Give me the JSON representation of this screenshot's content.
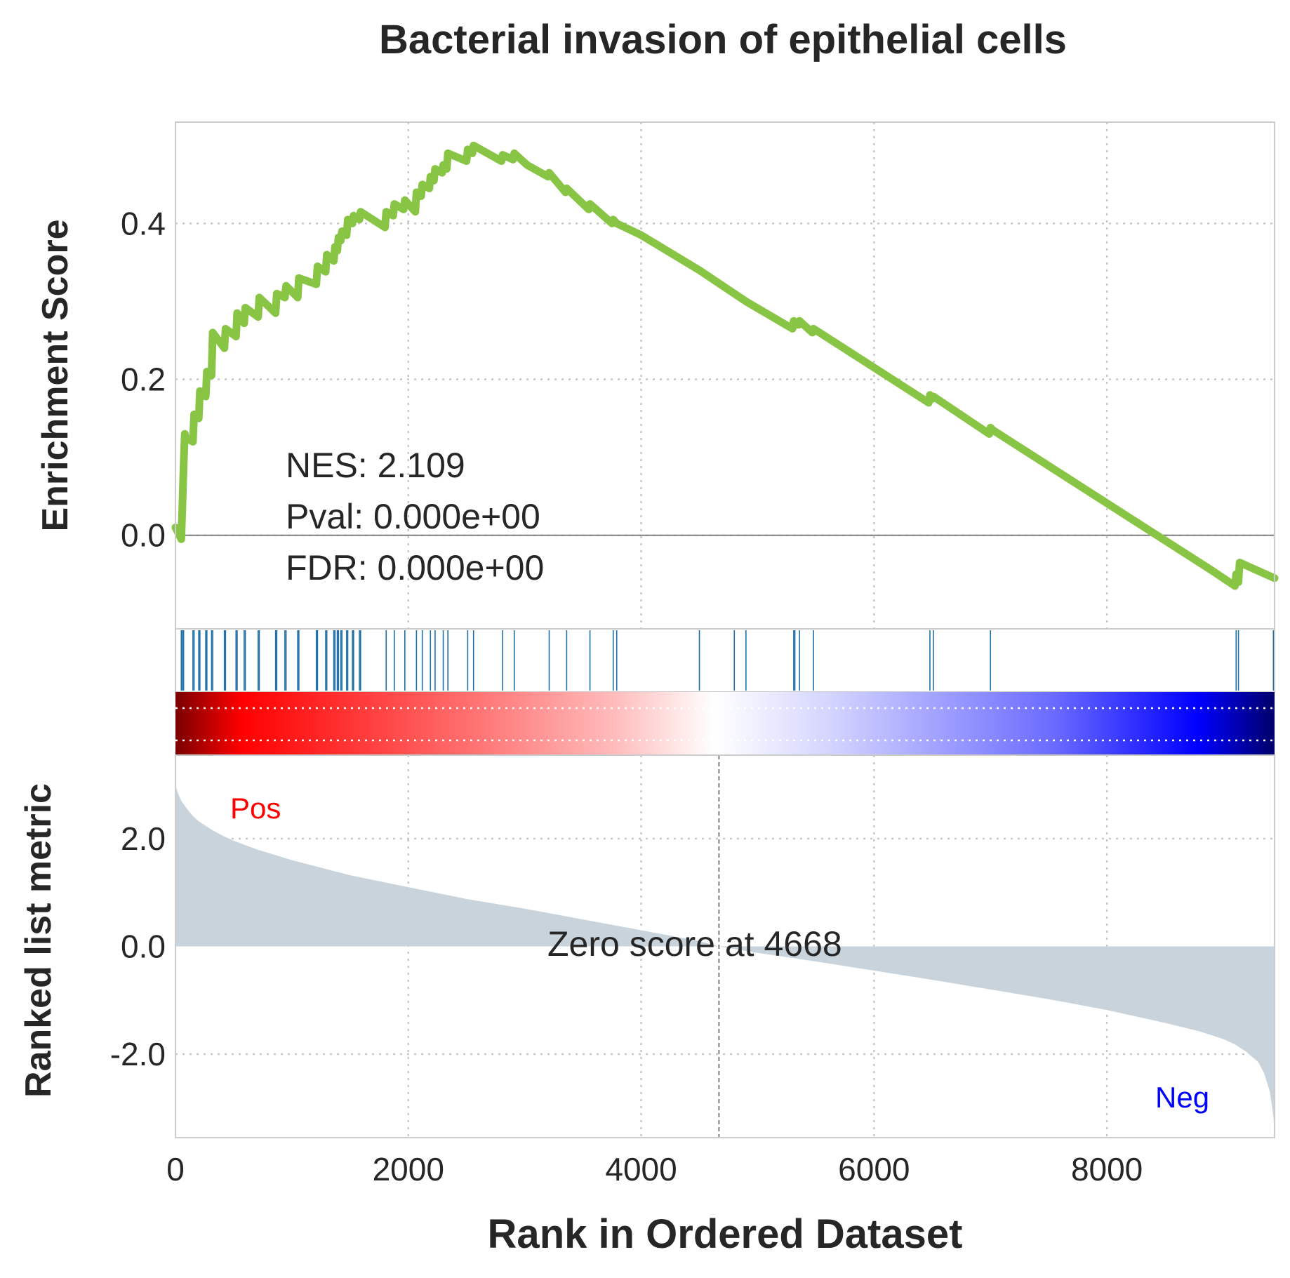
{
  "title": "Bacterial invasion of epithelial cells",
  "colors": {
    "es_line": "#88c544",
    "hits": "#1f6fa8",
    "metric_fill": "#c8d3dc",
    "pos_label": "#ff0000",
    "neg_label": "#0000ff"
  },
  "stats": {
    "nes": "NES: 2.109",
    "pval": "Pval: 0.000e+00",
    "fdr": "FDR: 0.000e+00"
  },
  "pos_label": "Pos",
  "neg_label": "Neg",
  "zero_score_label": "Zero score at 4668",
  "chart_data": [
    {
      "type": "line",
      "name": "running enrichment score",
      "ylabel": "Enrichment Score",
      "xlim": [
        0,
        9440
      ],
      "ylim": [
        -0.12,
        0.53
      ],
      "x_ticks": [
        0,
        2000,
        4000,
        6000,
        8000
      ],
      "y_ticks": [
        0.0,
        0.2,
        0.4
      ],
      "y_tick_labels": [
        "0.0",
        "0.2",
        "0.4"
      ],
      "grid": true,
      "x": [
        0,
        50,
        60,
        70,
        80,
        90,
        150,
        160,
        200,
        210,
        260,
        270,
        310,
        320,
        420,
        430,
        520,
        530,
        590,
        600,
        710,
        720,
        860,
        870,
        940,
        950,
        1050,
        1060,
        1210,
        1220,
        1290,
        1300,
        1360,
        1370,
        1390,
        1400,
        1420,
        1430,
        1470,
        1480,
        1520,
        1530,
        1580,
        1590,
        1800,
        1810,
        1870,
        1880,
        1960,
        1970,
        2060,
        2070,
        2110,
        2120,
        2180,
        2190,
        2220,
        2230,
        2290,
        2300,
        2330,
        2340,
        2500,
        2510,
        2550,
        2560,
        2800,
        2810,
        2900,
        2910,
        3020,
        3200,
        3210,
        3350,
        3360,
        3550,
        3560,
        3750,
        3760,
        3790,
        4000,
        4500,
        4900,
        5300,
        5310,
        5350,
        5360,
        5470,
        5480,
        6470,
        6480,
        6500,
        6510,
        6990,
        7000,
        7020,
        8900,
        9100,
        9110,
        9130,
        9140,
        9440
      ],
      "y": [
        0.01,
        -0.005,
        0.04,
        0.09,
        0.13,
        0.125,
        0.12,
        0.155,
        0.15,
        0.185,
        0.178,
        0.21,
        0.205,
        0.26,
        0.24,
        0.265,
        0.255,
        0.285,
        0.272,
        0.292,
        0.28,
        0.305,
        0.285,
        0.31,
        0.305,
        0.32,
        0.305,
        0.33,
        0.322,
        0.345,
        0.338,
        0.36,
        0.352,
        0.37,
        0.365,
        0.382,
        0.378,
        0.39,
        0.385,
        0.405,
        0.4,
        0.41,
        0.405,
        0.415,
        0.395,
        0.415,
        0.41,
        0.425,
        0.418,
        0.43,
        0.415,
        0.44,
        0.435,
        0.45,
        0.445,
        0.46,
        0.455,
        0.47,
        0.465,
        0.475,
        0.47,
        0.49,
        0.48,
        0.495,
        0.49,
        0.5,
        0.48,
        0.488,
        0.482,
        0.49,
        0.475,
        0.46,
        0.465,
        0.44,
        0.445,
        0.418,
        0.425,
        0.4,
        0.405,
        0.4,
        0.385,
        0.34,
        0.3,
        0.265,
        0.275,
        0.27,
        0.275,
        0.26,
        0.265,
        0.17,
        0.18,
        0.175,
        0.178,
        0.13,
        0.138,
        0.135,
        -0.045,
        -0.065,
        -0.05,
        -0.06,
        -0.035,
        -0.055
      ]
    },
    {
      "type": "event-plot",
      "name": "gene set hits",
      "x": [
        50,
        60,
        70,
        150,
        160,
        200,
        210,
        260,
        270,
        310,
        320,
        420,
        430,
        520,
        530,
        590,
        600,
        710,
        720,
        860,
        870,
        940,
        950,
        1050,
        1060,
        1210,
        1220,
        1290,
        1300,
        1360,
        1370,
        1390,
        1400,
        1420,
        1430,
        1470,
        1480,
        1520,
        1530,
        1580,
        1590,
        1810,
        1880,
        1970,
        2070,
        2120,
        2190,
        2230,
        2300,
        2340,
        2510,
        2560,
        2810,
        2910,
        3210,
        3360,
        3560,
        3760,
        3790,
        4500,
        4800,
        4900,
        5310,
        5320,
        5360,
        5480,
        6480,
        6510,
        7000,
        9110,
        9130,
        9430
      ]
    },
    {
      "type": "area",
      "name": "ranked list metric",
      "ylabel": "Ranked list metric",
      "xlabel": "Rank in Ordered Dataset",
      "xlim": [
        0,
        9440
      ],
      "ylim": [
        -3.55,
        3.55
      ],
      "x_ticks": [
        0,
        2000,
        4000,
        6000,
        8000
      ],
      "x_tick_labels": [
        "0",
        "2000",
        "4000",
        "6000",
        "8000"
      ],
      "y_ticks": [
        2.0,
        0.0,
        -2.0
      ],
      "y_tick_labels": [
        "2.0",
        "0.0",
        "-2.0"
      ],
      "zero_cross": 4668,
      "grid": true,
      "x": [
        0,
        20,
        50,
        100,
        150,
        200,
        300,
        400,
        500,
        700,
        1000,
        1500,
        2000,
        2500,
        3000,
        3500,
        4000,
        4500,
        4668,
        5000,
        5500,
        6000,
        6500,
        7000,
        7500,
        8000,
        8500,
        8800,
        9000,
        9100,
        9200,
        9300,
        9350,
        9400,
        9420,
        9440
      ],
      "y": [
        3.0,
        2.85,
        2.7,
        2.55,
        2.42,
        2.32,
        2.18,
        2.06,
        1.96,
        1.8,
        1.6,
        1.32,
        1.1,
        0.88,
        0.7,
        0.5,
        0.3,
        0.1,
        0.0,
        -0.12,
        -0.28,
        -0.45,
        -0.62,
        -0.8,
        -0.98,
        -1.18,
        -1.42,
        -1.58,
        -1.72,
        -1.82,
        -1.96,
        -2.15,
        -2.35,
        -2.7,
        -3.0,
        -3.35
      ]
    }
  ]
}
